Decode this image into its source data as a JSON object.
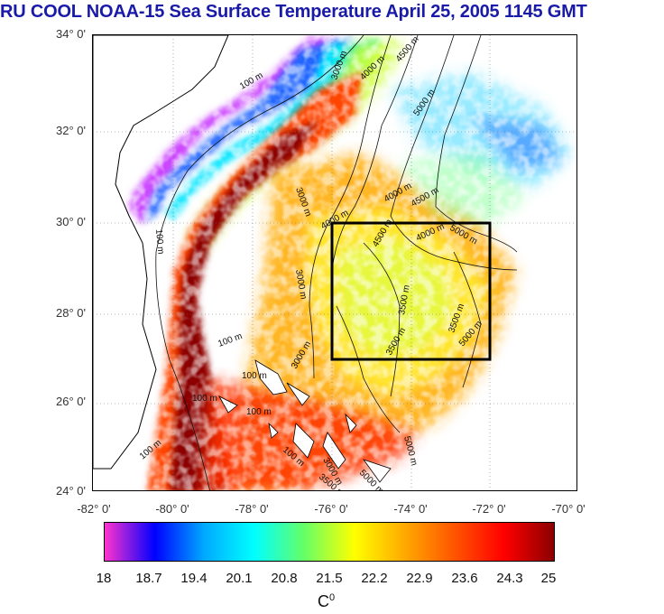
{
  "title": "RU COOL  NOAA-15 Sea Surface Temperature April 25, 2005 1145 GMT",
  "lat_labels": [
    "34° 0'",
    "32° 0'",
    "30° 0'",
    "28° 0'",
    "26° 0'",
    "24° 0'"
  ],
  "lon_labels": [
    "-82° 0'",
    "-80° 0'",
    "-78° 0'",
    "-76° 0'",
    "-74° 0'",
    "-72° 0'",
    "-70° 0'"
  ],
  "map": {
    "lat_range": [
      24,
      34
    ],
    "lon_range": [
      -82,
      -70
    ],
    "grid": true,
    "study_box": {
      "lon": [
        -76,
        -72
      ],
      "lat": [
        27,
        30
      ]
    },
    "contour_labels": [
      "100 m",
      "100 m",
      "100 m",
      "100 m",
      "100 m",
      "100 m",
      "100 m",
      "100 m",
      "3000 m",
      "3000 m",
      "3000 m",
      "3000 m",
      "3000 m",
      "4000 m",
      "4000 m",
      "4000 m",
      "4000 m",
      "4500 m",
      "4500 m",
      "4500 m",
      "5000 m",
      "5000 m",
      "5000 m",
      "5000 m",
      "5000 m",
      "3500 m",
      "3500 m",
      "3500 m",
      "3500 m"
    ]
  },
  "colorbar": {
    "ticks": [
      "18",
      "18.7",
      "19.4",
      "20.1",
      "20.8",
      "21.5",
      "22.2",
      "22.9",
      "23.6",
      "24.3",
      "25"
    ],
    "range": [
      18,
      25
    ],
    "unit_base": "C",
    "unit_sup": "0",
    "colors": [
      "#ff33cc",
      "#0000ff",
      "#00aaff",
      "#00ffff",
      "#66ff66",
      "#ffff00",
      "#ffaa00",
      "#ff5500",
      "#ff0000",
      "#8b0000"
    ]
  }
}
